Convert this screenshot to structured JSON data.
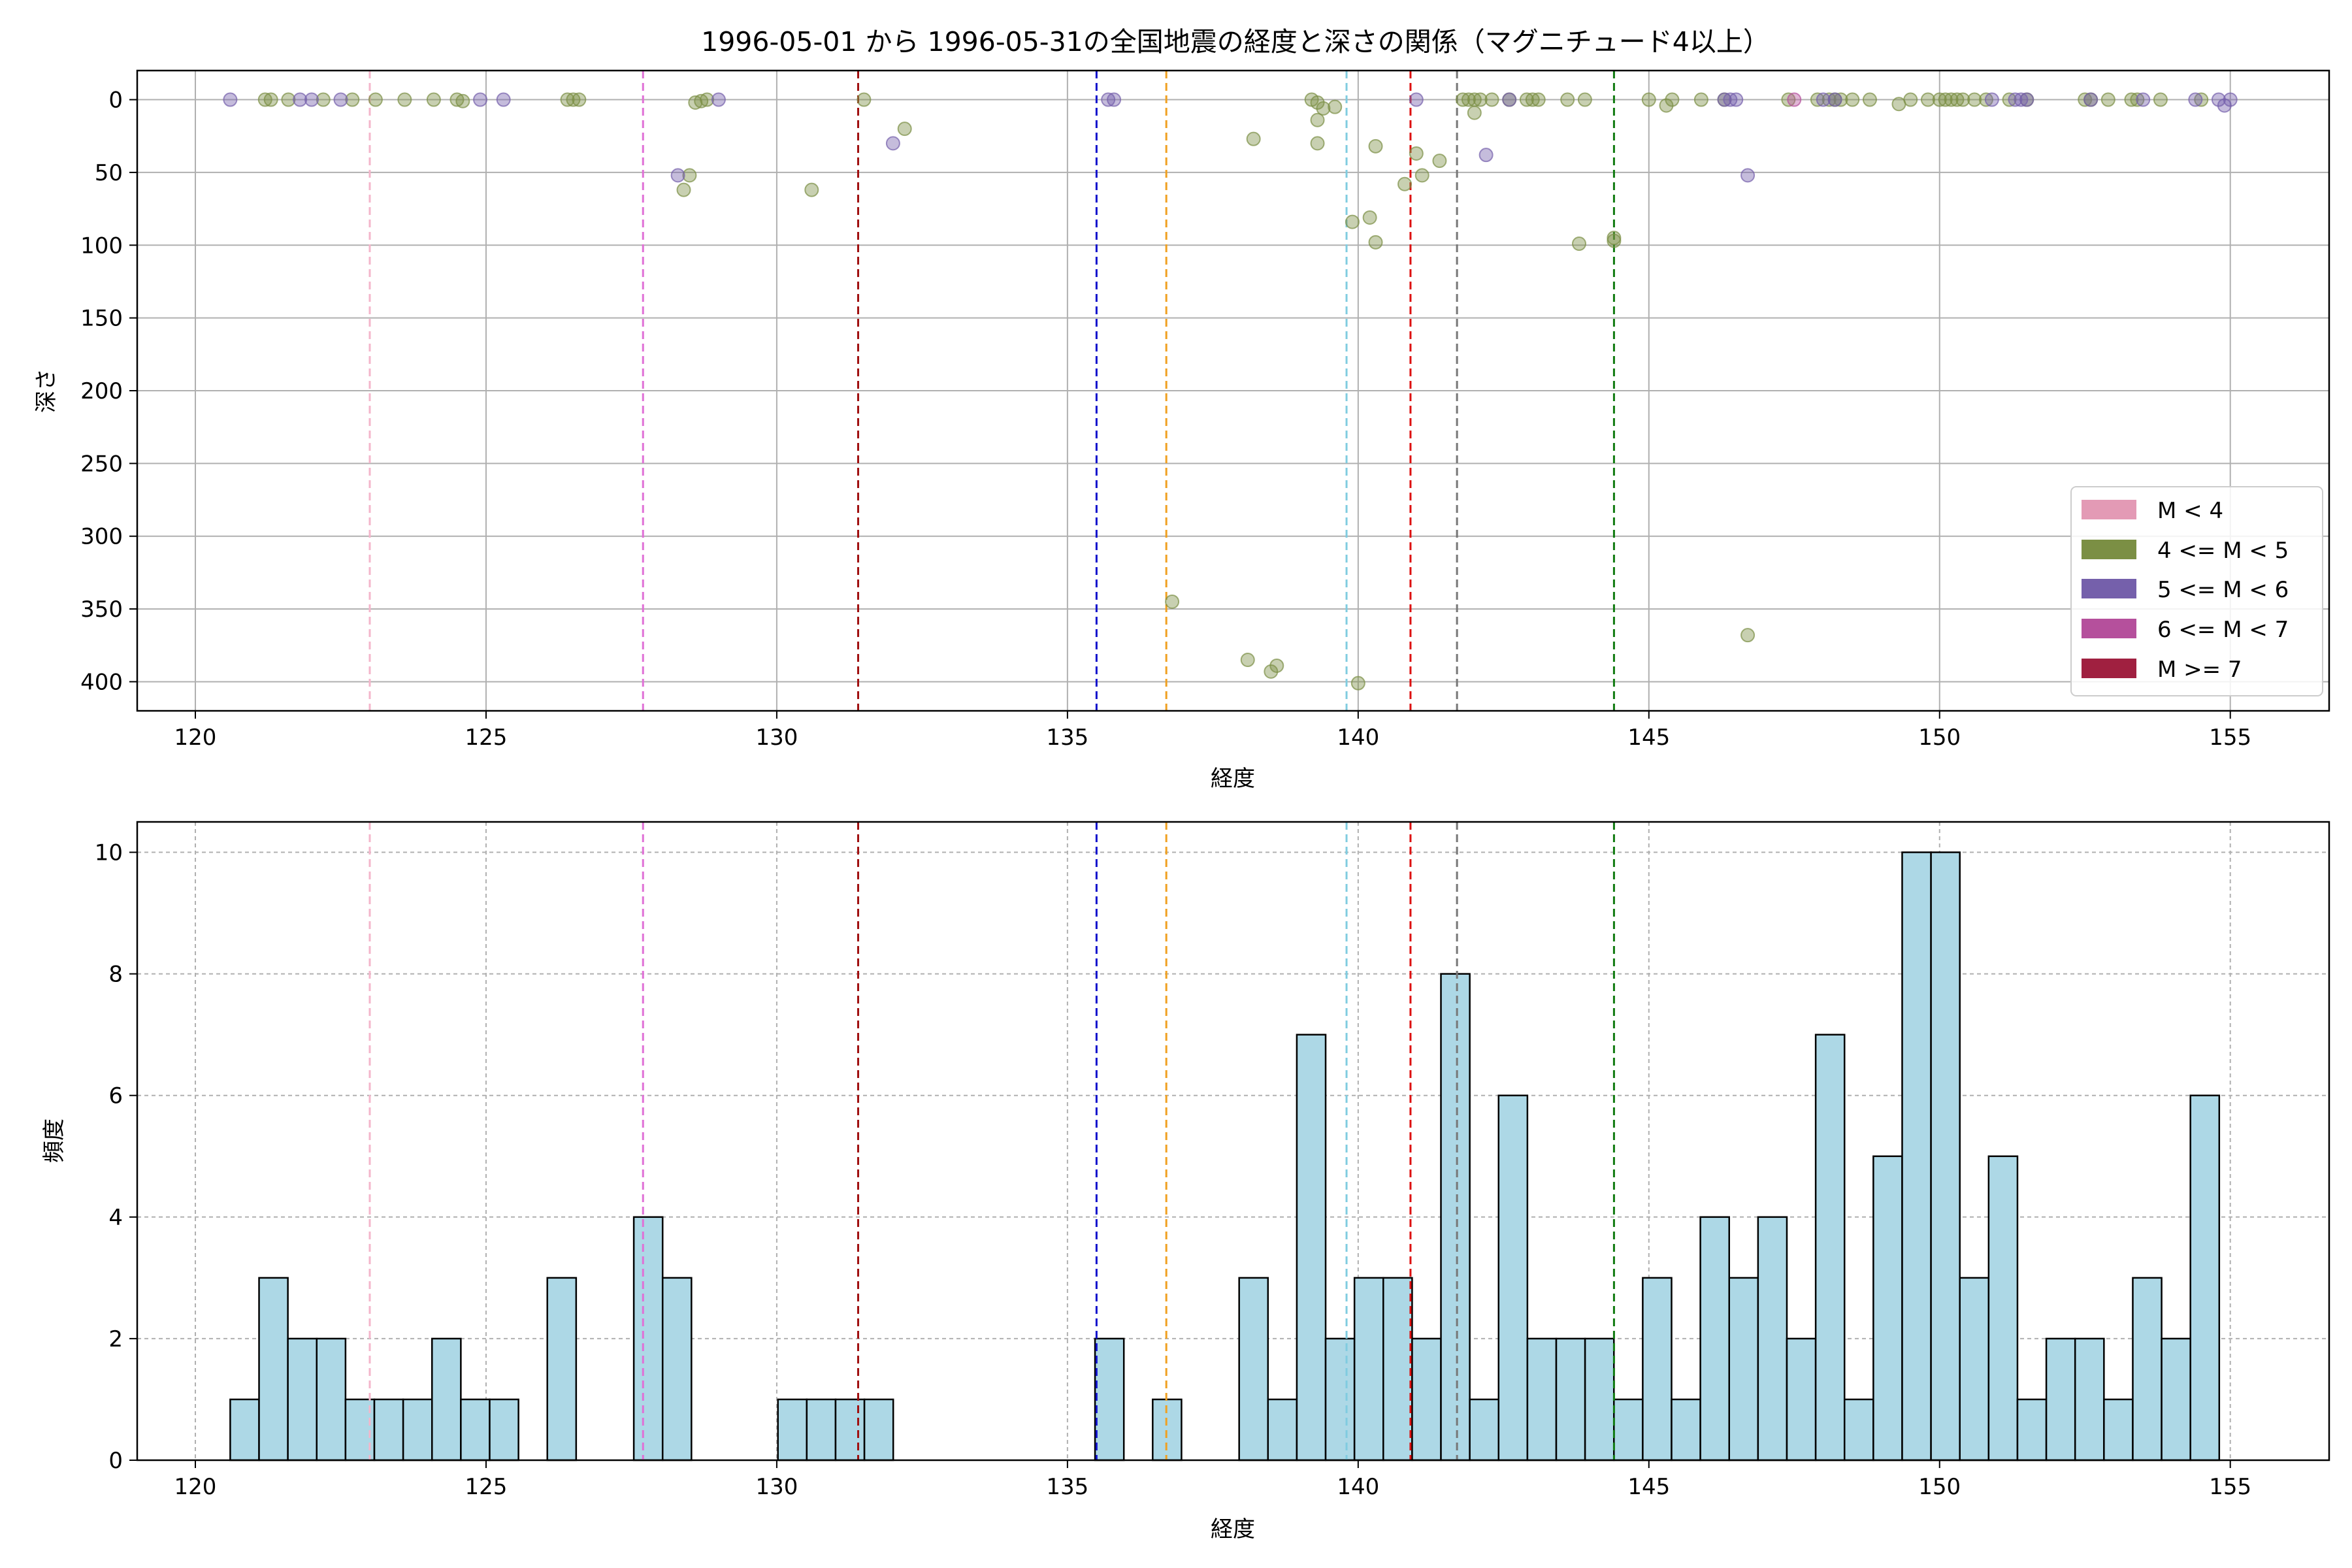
{
  "chart_data": [
    {
      "type": "scatter",
      "title": "1996-05-01 から 1996-05-31の全国地震の経度と深さの関係（マグニチュード4以上）",
      "xlabel": "経度",
      "ylabel": "深さ",
      "xlim": [
        119,
        156.7
      ],
      "ylim": [
        420,
        -20
      ],
      "y_inverted": true,
      "xticks": [
        120,
        125,
        130,
        135,
        140,
        145,
        150,
        155
      ],
      "yticks": [
        0,
        50,
        100,
        150,
        200,
        250,
        300,
        350,
        400
      ],
      "grid": true,
      "legend_position": "lower-right",
      "legend": [
        {
          "label": "M < 4",
          "color": "#e39ab5"
        },
        {
          "label": "4 <= M < 5",
          "color": "#7b8f44"
        },
        {
          "label": "5 <= M < 6",
          "color": "#7560ab"
        },
        {
          "label": "6 <= M < 7",
          "color": "#b5509c"
        },
        {
          "label": "M >= 7",
          "color": "#a02040"
        }
      ],
      "reference_lines": [
        {
          "x": 123.0,
          "color": "#f4b6cb"
        },
        {
          "x": 127.7,
          "color": "#e070d6"
        },
        {
          "x": 131.4,
          "color": "#a01010"
        },
        {
          "x": 135.5,
          "color": "#1010cc"
        },
        {
          "x": 136.7,
          "color": "#f0a020"
        },
        {
          "x": 139.8,
          "color": "#80cce0"
        },
        {
          "x": 140.9,
          "color": "#dd1010"
        },
        {
          "x": 141.7,
          "color": "#777777"
        },
        {
          "x": 144.4,
          "color": "#107a10"
        }
      ],
      "series": [
        {
          "magnitude_class": "4 <= M < 5",
          "color": "#7b8f44",
          "points": [
            [
              121.2,
              0
            ],
            [
              121.3,
              0
            ],
            [
              121.6,
              0
            ],
            [
              122.2,
              0
            ],
            [
              122.7,
              0
            ],
            [
              123.1,
              0
            ],
            [
              123.6,
              0
            ],
            [
              124.1,
              0
            ],
            [
              124.5,
              0
            ],
            [
              124.6,
              1
            ],
            [
              126.4,
              0
            ],
            [
              126.5,
              0
            ],
            [
              126.6,
              0
            ],
            [
              128.6,
              2
            ],
            [
              128.7,
              1
            ],
            [
              128.8,
              0
            ],
            [
              128.5,
              52
            ],
            [
              128.4,
              62
            ],
            [
              130.6,
              62
            ],
            [
              131.5,
              0
            ],
            [
              132.2,
              20
            ],
            [
              136.8,
              345
            ],
            [
              138.2,
              27
            ],
            [
              138.1,
              385
            ],
            [
              138.5,
              393
            ],
            [
              138.6,
              389
            ],
            [
              139.2,
              0
            ],
            [
              139.3,
              2
            ],
            [
              139.4,
              6
            ],
            [
              139.3,
              14
            ],
            [
              139.3,
              30
            ],
            [
              139.6,
              5
            ],
            [
              139.9,
              84
            ],
            [
              140.0,
              401
            ],
            [
              140.2,
              81
            ],
            [
              140.3,
              32
            ],
            [
              140.3,
              98
            ],
            [
              140.8,
              58
            ],
            [
              141.0,
              37
            ],
            [
              141.1,
              52
            ],
            [
              141.4,
              42
            ],
            [
              141.8,
              0
            ],
            [
              141.9,
              0
            ],
            [
              142.0,
              0
            ],
            [
              142.0,
              9
            ],
            [
              142.1,
              0
            ],
            [
              142.3,
              0
            ],
            [
              142.6,
              0
            ],
            [
              142.9,
              0
            ],
            [
              143.0,
              0
            ],
            [
              143.1,
              0
            ],
            [
              143.6,
              0
            ],
            [
              143.9,
              0
            ],
            [
              143.8,
              99
            ],
            [
              144.4,
              95
            ],
            [
              144.4,
              97
            ],
            [
              145.0,
              0
            ],
            [
              145.3,
              4
            ],
            [
              145.4,
              0
            ],
            [
              145.9,
              0
            ],
            [
              146.3,
              0
            ],
            [
              147.4,
              0
            ],
            [
              147.9,
              0
            ],
            [
              148.1,
              0
            ],
            [
              148.2,
              0
            ],
            [
              148.3,
              0
            ],
            [
              148.5,
              0
            ],
            [
              148.8,
              0
            ],
            [
              149.3,
              3
            ],
            [
              149.5,
              0
            ],
            [
              149.8,
              0
            ],
            [
              150.0,
              0
            ],
            [
              150.1,
              0
            ],
            [
              150.2,
              0
            ],
            [
              150.3,
              0
            ],
            [
              150.4,
              0
            ],
            [
              150.6,
              0
            ],
            [
              150.8,
              0
            ],
            [
              151.2,
              0
            ],
            [
              151.5,
              0
            ],
            [
              152.5,
              0
            ],
            [
              152.6,
              0
            ],
            [
              152.9,
              0
            ],
            [
              153.3,
              0
            ],
            [
              153.4,
              0
            ],
            [
              153.8,
              0
            ],
            [
              154.5,
              0
            ],
            [
              146.7,
              368
            ]
          ]
        },
        {
          "magnitude_class": "5 <= M < 6",
          "color": "#7560ab",
          "points": [
            [
              120.6,
              0
            ],
            [
              121.8,
              0
            ],
            [
              122.0,
              0
            ],
            [
              122.5,
              0
            ],
            [
              124.9,
              0
            ],
            [
              125.3,
              0
            ],
            [
              128.3,
              52
            ],
            [
              129.0,
              0
            ],
            [
              132.0,
              30
            ],
            [
              135.7,
              0
            ],
            [
              135.8,
              0
            ],
            [
              141.0,
              0
            ],
            [
              142.2,
              38
            ],
            [
              142.6,
              0
            ],
            [
              146.3,
              0
            ],
            [
              146.4,
              0
            ],
            [
              146.7,
              52
            ],
            [
              148.0,
              0
            ],
            [
              150.9,
              0
            ],
            [
              151.3,
              0
            ],
            [
              151.5,
              0
            ],
            [
              152.6,
              0
            ],
            [
              153.5,
              0
            ],
            [
              154.4,
              0
            ],
            [
              154.8,
              0
            ],
            [
              154.9,
              4
            ],
            [
              155.0,
              0
            ],
            [
              151.4,
              0
            ],
            [
              148.2,
              0
            ],
            [
              146.5,
              0
            ]
          ]
        },
        {
          "magnitude_class": "6 <= M < 7",
          "color": "#b5509c",
          "points": [
            [
              147.5,
              0
            ]
          ]
        }
      ]
    },
    {
      "type": "bar",
      "subtype": "histogram",
      "xlabel": "経度",
      "ylabel": "頻度",
      "xlim": [
        119,
        156.7
      ],
      "ylim": [
        0,
        10.5
      ],
      "xticks": [
        120,
        125,
        130,
        135,
        140,
        145,
        150,
        155
      ],
      "yticks": [
        0,
        2,
        4,
        6,
        8,
        10
      ],
      "grid": true,
      "bar_color": "#add8e6",
      "bin_start": 120.6,
      "bin_width": 0.4958,
      "values": [
        1,
        3,
        2,
        2,
        1,
        1,
        1,
        2,
        1,
        1,
        0,
        3,
        0,
        0,
        4,
        3,
        0,
        0,
        0,
        1,
        1,
        1,
        1,
        0,
        0,
        0,
        0,
        0,
        0,
        0,
        2,
        0,
        1,
        0,
        0,
        3,
        1,
        7,
        2,
        3,
        3,
        2,
        8,
        1,
        6,
        2,
        2,
        2,
        1,
        3,
        1,
        4,
        3,
        4,
        2,
        7,
        1,
        5,
        10,
        10,
        3,
        5,
        1,
        2,
        2,
        1,
        3,
        2,
        6
      ],
      "reference_lines": [
        {
          "x": 123.0,
          "color": "#f4b6cb"
        },
        {
          "x": 127.7,
          "color": "#e070d6"
        },
        {
          "x": 131.4,
          "color": "#a01010"
        },
        {
          "x": 135.5,
          "color": "#1010cc"
        },
        {
          "x": 136.7,
          "color": "#f0a020"
        },
        {
          "x": 139.8,
          "color": "#80cce0"
        },
        {
          "x": 140.9,
          "color": "#dd1010"
        },
        {
          "x": 141.7,
          "color": "#777777"
        },
        {
          "x": 144.4,
          "color": "#107a10"
        }
      ]
    }
  ]
}
